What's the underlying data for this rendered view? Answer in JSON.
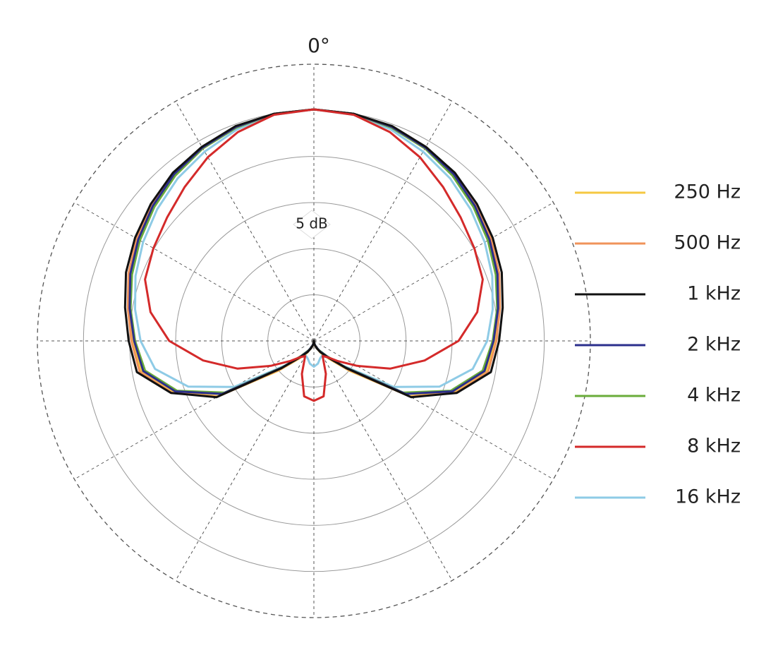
{
  "chart_data": {
    "type": "polar",
    "title": "0°",
    "scale_label": "5 dB",
    "rlim": [
      -30,
      0
    ],
    "rticks": [
      -25,
      -20,
      -15,
      -10,
      -5,
      0
    ],
    "thetaticks": [
      0,
      30,
      60,
      90,
      120,
      150,
      180,
      210,
      240,
      270,
      300,
      330
    ],
    "grid": true,
    "legend": "right",
    "theta": [
      0,
      10,
      20,
      30,
      40,
      50,
      60,
      70,
      80,
      90,
      100,
      110,
      120,
      130,
      140,
      150,
      160,
      170,
      180,
      190,
      200,
      210,
      220,
      230,
      240,
      250,
      260,
      270,
      280,
      290,
      300,
      310,
      320,
      330,
      340,
      350
    ],
    "series": [
      {
        "name": "250 Hz",
        "color": "#f5c842",
        "values": [
          -4.9,
          -5.0,
          -5.3,
          -5.8,
          -6.4,
          -7.1,
          -7.9,
          -8.7,
          -9.6,
          -10.4,
          -11.0,
          -13.8,
          -18.0,
          -25.0,
          -27.5,
          -28.5,
          -29.2,
          -29.6,
          -30,
          -29.6,
          -29.2,
          -28.5,
          -27.5,
          -25.0,
          -18.0,
          -13.8,
          -11.0,
          -10.4,
          -9.6,
          -8.7,
          -7.9,
          -7.1,
          -6.4,
          -5.8,
          -5.3,
          -5.0
        ]
      },
      {
        "name": "500 Hz",
        "color": "#f0935a",
        "values": [
          -4.9,
          -5.0,
          -5.3,
          -5.8,
          -6.3,
          -7.0,
          -7.8,
          -8.6,
          -9.5,
          -10.2,
          -10.8,
          -13.6,
          -17.9,
          -25.2,
          -27.6,
          -28.6,
          -29.2,
          -29.6,
          -30,
          -29.6,
          -29.2,
          -28.6,
          -27.6,
          -25.2,
          -17.9,
          -13.6,
          -10.8,
          -10.2,
          -9.5,
          -8.6,
          -7.8,
          -7.0,
          -6.3,
          -5.8,
          -5.3,
          -5.0
        ]
      },
      {
        "name": "1 kHz",
        "color": "#111111",
        "values": [
          -4.9,
          -5.0,
          -5.2,
          -5.7,
          -6.2,
          -6.9,
          -7.6,
          -8.3,
          -9.2,
          -9.9,
          -10.5,
          -13.5,
          -17.8,
          -25.4,
          -27.7,
          -28.6,
          -29.2,
          -29.6,
          -30,
          -29.6,
          -29.2,
          -28.6,
          -27.7,
          -25.4,
          -17.8,
          -13.5,
          -10.5,
          -9.9,
          -9.2,
          -8.3,
          -7.6,
          -6.9,
          -6.2,
          -5.7,
          -5.2,
          -5.0
        ]
      },
      {
        "name": "2 kHz",
        "color": "#2b2f8c",
        "values": [
          -4.9,
          -5.0,
          -5.3,
          -5.8,
          -6.4,
          -7.2,
          -8.0,
          -8.8,
          -9.7,
          -10.5,
          -11.2,
          -14.0,
          -18.5,
          -25.5,
          -27.8,
          -28.7,
          -29.3,
          -29.7,
          -30,
          -29.7,
          -29.3,
          -28.7,
          -27.8,
          -25.5,
          -18.5,
          -14.0,
          -11.2,
          -10.5,
          -9.7,
          -8.8,
          -8.0,
          -7.2,
          -6.4,
          -5.8,
          -5.3,
          -5.0
        ]
      },
      {
        "name": "4 kHz",
        "color": "#6aac3a",
        "values": [
          -4.9,
          -5.0,
          -5.4,
          -5.9,
          -6.6,
          -7.4,
          -8.2,
          -9.0,
          -9.8,
          -10.6,
          -11.4,
          -14.2,
          -18.8,
          -25.6,
          -27.9,
          -28.8,
          -29.3,
          -29.7,
          -30,
          -29.7,
          -29.3,
          -28.8,
          -27.9,
          -25.6,
          -18.8,
          -14.2,
          -11.4,
          -10.6,
          -9.8,
          -9.0,
          -8.2,
          -7.4,
          -6.6,
          -5.9,
          -5.4,
          -5.0
        ]
      },
      {
        "name": "8 kHz",
        "color": "#d42a2a",
        "values": [
          -4.9,
          -5.1,
          -5.9,
          -7.0,
          -8.2,
          -9.2,
          -9.9,
          -10.5,
          -12.0,
          -14.3,
          -17.8,
          -21.2,
          -24.6,
          -26.6,
          -27.7,
          -28.1,
          -26.2,
          -23.9,
          -23.5,
          -23.9,
          -26.2,
          -28.1,
          -27.7,
          -26.6,
          -24.6,
          -21.2,
          -17.8,
          -14.3,
          -12.0,
          -10.5,
          -9.9,
          -9.2,
          -8.2,
          -7.0,
          -5.9,
          -5.1
        ]
      },
      {
        "name": "16 kHz",
        "color": "#8ecbe6",
        "values": [
          -4.9,
          -5.1,
          -5.6,
          -6.3,
          -7.0,
          -7.8,
          -8.6,
          -9.4,
          -10.3,
          -11.2,
          -12.5,
          -15.5,
          -20.0,
          -25.8,
          -27.6,
          -28.2,
          -28.0,
          -27.5,
          -27.2,
          -27.5,
          -28.0,
          -28.2,
          -27.6,
          -25.8,
          -20.0,
          -15.5,
          -12.5,
          -11.2,
          -10.3,
          -9.4,
          -8.6,
          -7.8,
          -7.0,
          -6.3,
          -5.6,
          -5.1
        ]
      }
    ]
  }
}
